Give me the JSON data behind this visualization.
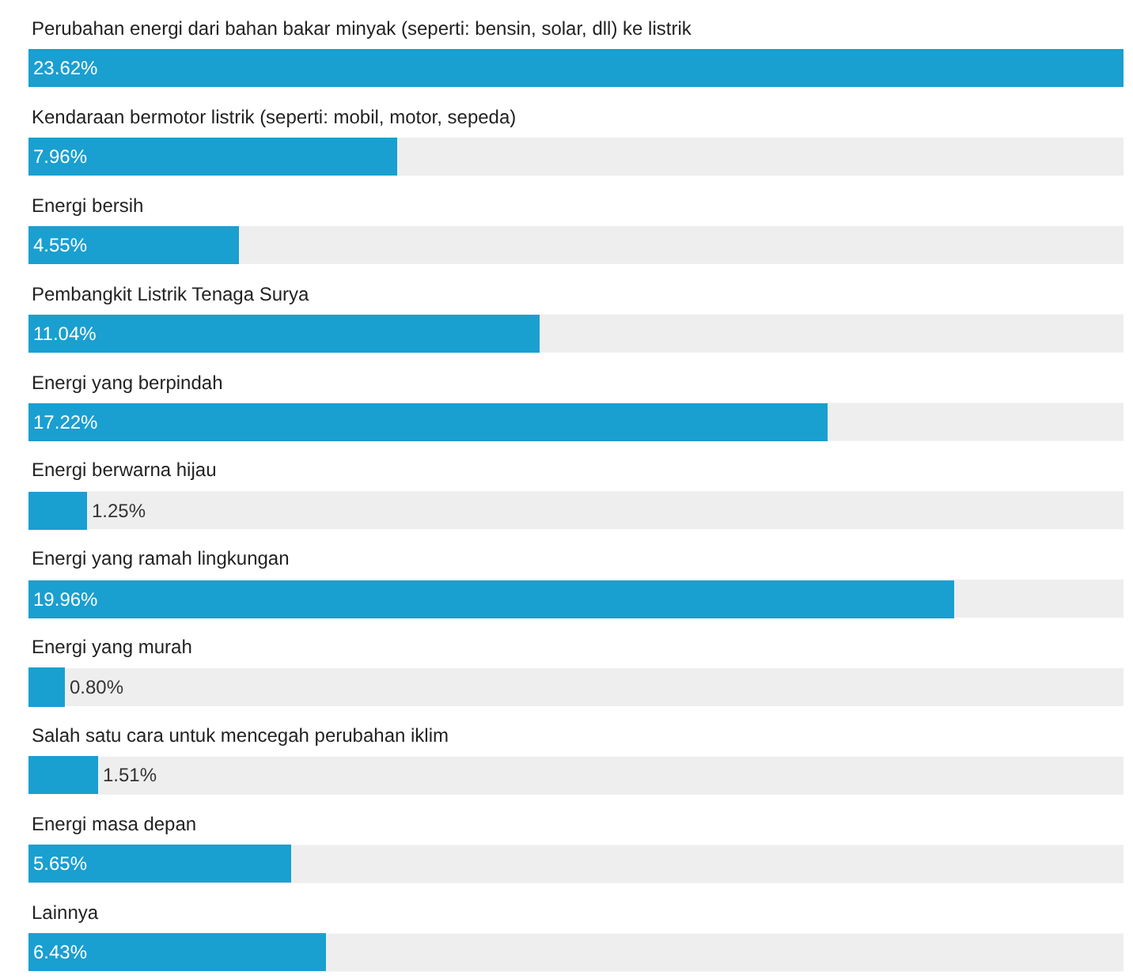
{
  "chart_data": {
    "type": "bar",
    "orientation": "horizontal",
    "categories": [
      "Perubahan energi dari bahan bakar minyak (seperti: bensin, solar, dll) ke listrik",
      "Kendaraan bermotor listrik (seperti: mobil, motor, sepeda)",
      "Energi bersih",
      "Pembangkit Listrik Tenaga Surya",
      "Energi yang berpindah",
      "Energi berwarna hijau",
      "Energi yang ramah lingkungan",
      "Energi yang murah",
      "Salah satu cara untuk mencegah perubahan iklim",
      "Energi masa depan",
      "Lainnya"
    ],
    "values": [
      23.62,
      7.96,
      4.55,
      11.04,
      17.22,
      1.25,
      19.96,
      0.8,
      1.51,
      5.65,
      6.43
    ],
    "value_labels": [
      "23.62%",
      "7.96%",
      "4.55%",
      "11.04%",
      "17.22%",
      "1.25%",
      "19.96%",
      "0.80%",
      "1.51%",
      "5.65%",
      "6.43%"
    ],
    "color": "#1a9fd1",
    "xlim": [
      0,
      23.62
    ]
  }
}
